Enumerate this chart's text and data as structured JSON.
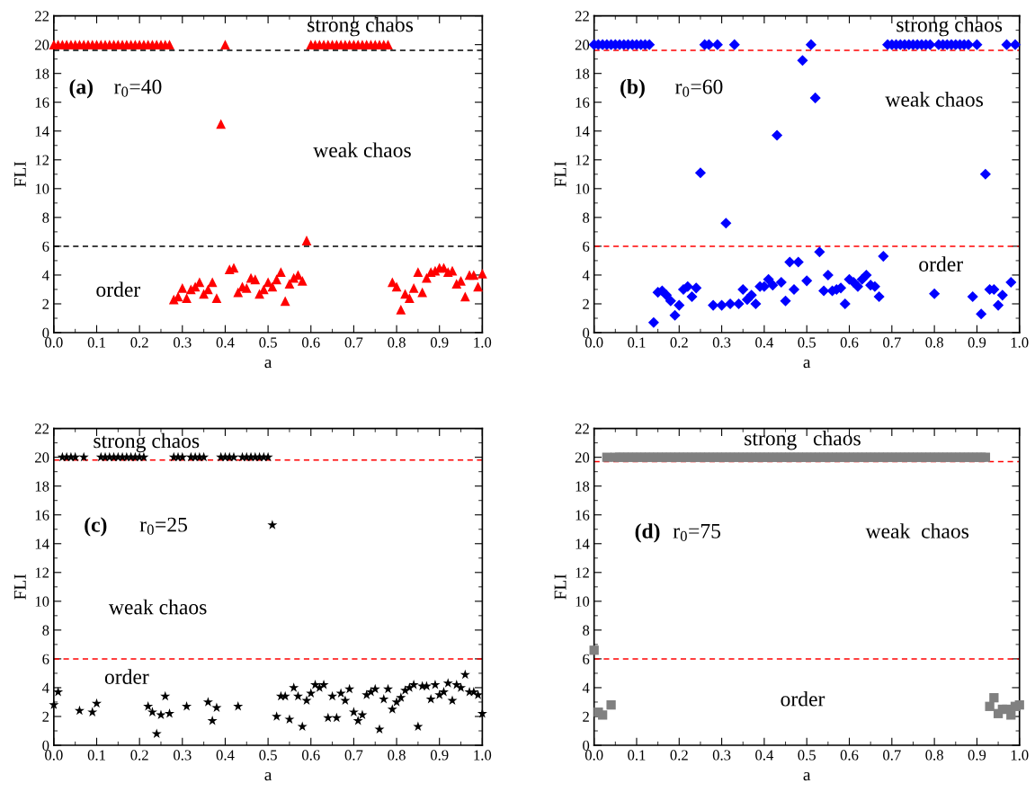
{
  "chart_data": [
    {
      "type": "scatter",
      "xlabel": "a",
      "ylabel": "FLI",
      "marker": "triangle",
      "xlim": [
        0,
        1
      ],
      "ylim": [
        0,
        22
      ],
      "xticks": [
        {
          "value": 0,
          "label": "0.0"
        },
        {
          "value": 0.1,
          "label": "0.1"
        },
        {
          "value": 0.2,
          "label": "0.2"
        },
        {
          "value": 0.3,
          "label": "0.3"
        },
        {
          "value": 0.4,
          "label": "0.4"
        },
        {
          "value": 0.5,
          "label": "0.5"
        },
        {
          "value": 0.6,
          "label": "0.6"
        },
        {
          "value": 0.7,
          "label": "0.7"
        },
        {
          "value": 0.8,
          "label": "0.8"
        },
        {
          "value": 0.9,
          "label": "0.9"
        },
        {
          "value": 1,
          "label": "1.0"
        }
      ],
      "yticks": [
        0,
        2,
        4,
        6,
        8,
        10,
        12,
        14,
        16,
        18,
        20,
        22
      ],
      "ref_lines": [
        {
          "axis": "y",
          "value": 19.6,
          "color": "#000000",
          "line_style": "dashed"
        },
        {
          "axis": "y",
          "value": 6,
          "color": "#000000",
          "line_style": "dashed"
        }
      ],
      "annotations": [
        "(a)",
        "r$_{0}$=40",
        "strong chaos",
        "weak chaos",
        "order"
      ],
      "x": [
        0,
        0.01,
        0.02,
        0.03,
        0.04,
        0.05,
        0.06,
        0.07,
        0.08,
        0.09,
        0.1,
        0.11,
        0.12,
        0.13,
        0.14,
        0.15,
        0.16,
        0.17,
        0.18,
        0.19,
        0.2,
        0.21,
        0.22,
        0.23,
        0.24,
        0.25,
        0.26,
        0.27,
        0.28,
        0.29,
        0.3,
        0.31,
        0.32,
        0.33,
        0.34,
        0.35,
        0.36,
        0.37,
        0.38,
        0.39,
        0.4,
        0.41,
        0.42,
        0.43,
        0.44,
        0.45,
        0.46,
        0.47,
        0.48,
        0.49,
        0.5,
        0.51,
        0.52,
        0.53,
        0.54,
        0.55,
        0.56,
        0.57,
        0.58,
        0.59,
        0.6,
        0.61,
        0.62,
        0.63,
        0.64,
        0.65,
        0.66,
        0.67,
        0.68,
        0.69,
        0.7,
        0.71,
        0.72,
        0.73,
        0.74,
        0.75,
        0.76,
        0.77,
        0.78,
        0.79,
        0.8,
        0.81,
        0.82,
        0.83,
        0.84,
        0.85,
        0.86,
        0.87,
        0.88,
        0.89,
        0.9,
        0.91,
        0.92,
        0.93,
        0.94,
        0.95,
        0.96,
        0.97,
        0.98,
        0.99,
        1
      ],
      "series": [
        {
          "color": "#ff0000",
          "values": [
            20,
            20,
            20,
            20,
            20,
            20,
            20,
            20,
            20,
            20,
            20,
            20,
            20,
            20,
            20,
            20,
            20,
            20,
            20,
            20,
            20,
            20,
            20,
            20,
            20,
            20,
            20,
            20,
            2.3,
            2.5,
            3.1,
            2.4,
            3.0,
            3.2,
            3.5,
            2.7,
            3.0,
            3.5,
            2.4,
            14.5,
            20,
            4.4,
            4.5,
            2.8,
            3.2,
            3.1,
            3.8,
            3.7,
            2.7,
            3.0,
            3.5,
            3.2,
            3.7,
            4.2,
            2.2,
            3.4,
            3.8,
            4.0,
            3.6,
            6.4,
            20,
            20,
            20,
            20,
            20,
            20,
            20,
            20,
            20,
            20,
            20,
            20,
            20,
            20,
            20,
            20,
            20,
            20,
            20,
            3.5,
            3.2,
            1.6,
            2.7,
            2.4,
            3.1,
            4.2,
            2.8,
            3.8,
            4.2,
            4.3,
            4.5,
            4.5,
            4.2,
            4.3,
            3.4,
            3.6,
            2.5,
            4.0,
            4.0,
            3.2,
            4.1
          ]
        }
      ]
    },
    {
      "type": "scatter",
      "xlabel": "a",
      "ylabel": "FLI",
      "marker": "diamond",
      "xlim": [
        0,
        1
      ],
      "ylim": [
        0,
        22
      ],
      "xticks": [
        {
          "value": 0,
          "label": "0.0"
        },
        {
          "value": 0.1,
          "label": "0.1"
        },
        {
          "value": 0.2,
          "label": "0.2"
        },
        {
          "value": 0.3,
          "label": "0.3"
        },
        {
          "value": 0.4,
          "label": "0.4"
        },
        {
          "value": 0.5,
          "label": "0.5"
        },
        {
          "value": 0.6,
          "label": "0.6"
        },
        {
          "value": 0.7,
          "label": "0.7"
        },
        {
          "value": 0.8,
          "label": "0.8"
        },
        {
          "value": 0.9,
          "label": "0.9"
        },
        {
          "value": 1,
          "label": "1.0"
        }
      ],
      "yticks": [
        0,
        2,
        4,
        6,
        8,
        10,
        12,
        14,
        16,
        18,
        20,
        22
      ],
      "ref_lines": [
        {
          "axis": "y",
          "value": 19.6,
          "color": "#ff0000",
          "line_style": "dashed"
        },
        {
          "axis": "y",
          "value": 6,
          "color": "#ff0000",
          "line_style": "dashed"
        }
      ],
      "annotations": [
        "(b)",
        "r$_{0}$=60",
        "strong chaos",
        "weak chaos",
        "order"
      ],
      "x": [
        0,
        0.01,
        0.02,
        0.03,
        0.04,
        0.05,
        0.06,
        0.07,
        0.08,
        0.09,
        0.1,
        0.11,
        0.12,
        0.13,
        0.14,
        0.15,
        0.16,
        0.17,
        0.18,
        0.19,
        0.2,
        0.21,
        0.22,
        0.23,
        0.24,
        0.25,
        0.26,
        0.27,
        0.28,
        0.29,
        0.3,
        0.31,
        0.32,
        0.33,
        0.34,
        0.35,
        0.36,
        0.37,
        0.38,
        0.39,
        0.4,
        0.41,
        0.42,
        0.43,
        0.44,
        0.45,
        0.46,
        0.47,
        0.48,
        0.49,
        0.5,
        0.51,
        0.52,
        0.53,
        0.54,
        0.55,
        0.56,
        0.57,
        0.58,
        0.59,
        0.6,
        0.61,
        0.62,
        0.63,
        0.64,
        0.65,
        0.66,
        0.67,
        0.68,
        0.69,
        0.7,
        0.71,
        0.72,
        0.73,
        0.74,
        0.75,
        0.76,
        0.77,
        0.78,
        0.79,
        0.8,
        0.81,
        0.82,
        0.83,
        0.84,
        0.85,
        0.86,
        0.87,
        0.88,
        0.89,
        0.9,
        0.91,
        0.92,
        0.93,
        0.94,
        0.95,
        0.96,
        0.97,
        0.98,
        0.99
      ],
      "series": [
        {
          "color": "#0000ff",
          "values": [
            20,
            20,
            20,
            20,
            20,
            20,
            20,
            20,
            20,
            20,
            20,
            20,
            20,
            20,
            0.7,
            2.8,
            2.9,
            2.6,
            2.2,
            1.2,
            1.9,
            3.0,
            3.2,
            2.5,
            3.1,
            11.1,
            20,
            20,
            1.9,
            20,
            1.9,
            7.6,
            2.0,
            20,
            2.0,
            3.0,
            2.3,
            2.6,
            2.0,
            3.2,
            3.2,
            3.7,
            3.3,
            13.7,
            3.5,
            2.2,
            4.9,
            3.0,
            4.9,
            18.9,
            3.6,
            20,
            16.3,
            5.6,
            2.9,
            4.0,
            2.9,
            3.0,
            3.1,
            2.0,
            3.7,
            3.5,
            3.2,
            3.7,
            4.0,
            3.3,
            3.2,
            2.5,
            5.3,
            20,
            20,
            20,
            20,
            20,
            20,
            20,
            20,
            20,
            20,
            20,
            2.7,
            20,
            20,
            20,
            20,
            20,
            20,
            20,
            20,
            2.5,
            20,
            1.3,
            11.0,
            3.0,
            3.0,
            1.9,
            2.6,
            20,
            3.5,
            20
          ]
        }
      ]
    },
    {
      "type": "scatter",
      "xlabel": "a",
      "ylabel": "FLI",
      "marker": "star",
      "xlim": [
        0,
        1
      ],
      "ylim": [
        0,
        22
      ],
      "xticks": [
        {
          "value": 0,
          "label": "0.0"
        },
        {
          "value": 0.1,
          "label": "0.1"
        },
        {
          "value": 0.2,
          "label": "0.2"
        },
        {
          "value": 0.3,
          "label": "0.3"
        },
        {
          "value": 0.4,
          "label": "0.4"
        },
        {
          "value": 0.5,
          "label": "0.5"
        },
        {
          "value": 0.6,
          "label": "0.6"
        },
        {
          "value": 0.7,
          "label": "0.7"
        },
        {
          "value": 0.8,
          "label": "0.8"
        },
        {
          "value": 0.9,
          "label": "0.9"
        },
        {
          "value": 1,
          "label": "1.0"
        }
      ],
      "yticks": [
        0,
        2,
        4,
        6,
        8,
        10,
        12,
        14,
        16,
        18,
        20,
        22
      ],
      "ref_lines": [
        {
          "axis": "y",
          "value": 19.8,
          "color": "#ff0000",
          "line_style": "dashed"
        },
        {
          "axis": "y",
          "value": 6,
          "color": "#ff0000",
          "line_style": "dashed"
        }
      ],
      "annotations": [
        "(c)",
        "r$_{0}$=25",
        "strong chaos",
        "weak chaos",
        "order"
      ],
      "x": [
        0,
        0.01,
        0.02,
        0.03,
        0.04,
        0.05,
        0.06,
        0.07,
        0.08,
        0.09,
        0.1,
        0.11,
        0.12,
        0.13,
        0.14,
        0.15,
        0.16,
        0.17,
        0.18,
        0.19,
        0.2,
        0.21,
        0.22,
        0.23,
        0.24,
        0.25,
        0.26,
        0.27,
        0.28,
        0.29,
        0.3,
        0.31,
        0.32,
        0.33,
        0.34,
        0.35,
        0.36,
        0.37,
        0.38,
        0.39,
        0.4,
        0.41,
        0.42,
        0.43,
        0.44,
        0.45,
        0.46,
        0.47,
        0.48,
        0.49,
        0.5,
        0.51,
        0.52,
        0.53,
        0.54,
        0.55,
        0.56,
        0.57,
        0.58,
        0.59,
        0.6,
        0.61,
        0.62,
        0.63,
        0.64,
        0.65,
        0.66,
        0.67,
        0.68,
        0.69,
        0.7,
        0.71,
        0.72,
        0.73,
        0.74,
        0.75,
        0.76,
        0.77,
        0.78,
        0.79,
        0.8,
        0.81,
        0.82,
        0.83,
        0.84,
        0.85,
        0.86,
        0.87,
        0.88,
        0.89,
        0.9,
        0.91,
        0.92,
        0.93,
        0.94,
        0.95,
        0.96,
        0.97,
        0.98,
        0.99,
        1
      ],
      "series": [
        {
          "color": "#000000",
          "values": [
            2.8,
            3.7,
            20,
            20,
            20,
            20,
            2.4,
            20,
            null,
            2.3,
            2.9,
            20,
            20,
            20,
            20,
            20,
            20,
            20,
            20,
            20,
            20,
            20,
            2.7,
            2.3,
            0.8,
            2.1,
            3.4,
            2.2,
            20,
            20,
            20,
            2.7,
            20,
            20,
            20,
            20,
            3.0,
            1.7,
            2.6,
            20,
            20,
            20,
            20,
            2.7,
            20,
            20,
            20,
            20,
            20,
            20,
            20,
            15.3,
            2.0,
            3.4,
            3.4,
            1.8,
            4.0,
            3.4,
            1.3,
            3.1,
            3.6,
            4.2,
            4.0,
            4.2,
            1.9,
            3.4,
            1.9,
            3.6,
            3.1,
            3.9,
            2.3,
            1.7,
            2.1,
            3.5,
            3.7,
            3.9,
            1.1,
            3.2,
            3.9,
            2.5,
            3.0,
            3.3,
            3.8,
            4.0,
            4.2,
            1.3,
            4.1,
            4.1,
            3.2,
            4.2,
            3.5,
            3.7,
            4.3,
            3.1,
            4.2,
            4.0,
            4.9,
            3.7,
            3.7,
            3.5,
            2.2
          ]
        }
      ]
    },
    {
      "type": "scatter",
      "xlabel": "a",
      "ylabel": "FLI",
      "marker": "square",
      "xlim": [
        0,
        1
      ],
      "ylim": [
        0,
        22
      ],
      "xticks": [
        {
          "value": 0,
          "label": "0.0"
        },
        {
          "value": 0.1,
          "label": "0.1"
        },
        {
          "value": 0.2,
          "label": "0.2"
        },
        {
          "value": 0.3,
          "label": "0.3"
        },
        {
          "value": 0.4,
          "label": "0.4"
        },
        {
          "value": 0.5,
          "label": "0.5"
        },
        {
          "value": 0.6,
          "label": "0.6"
        },
        {
          "value": 0.7,
          "label": "0.7"
        },
        {
          "value": 0.8,
          "label": "0.8"
        },
        {
          "value": 0.9,
          "label": "0.9"
        },
        {
          "value": 1,
          "label": "1.0"
        }
      ],
      "yticks": [
        0,
        2,
        4,
        6,
        8,
        10,
        12,
        14,
        16,
        18,
        20,
        22
      ],
      "ref_lines": [
        {
          "axis": "y",
          "value": 19.7,
          "color": "#ff0000",
          "line_style": "dashed"
        },
        {
          "axis": "y",
          "value": 6,
          "color": "#ff0000",
          "line_style": "dashed"
        }
      ],
      "annotations": [
        "(d)",
        "r$_{0}$=75",
        "strong   chaos",
        "weak  chaos",
        "order"
      ],
      "x": [
        0,
        0.01,
        0.02,
        0.03,
        0.04,
        0.05,
        0.06,
        0.07,
        0.08,
        0.09,
        0.1,
        0.11,
        0.12,
        0.13,
        0.14,
        0.15,
        0.16,
        0.17,
        0.18,
        0.19,
        0.2,
        0.21,
        0.22,
        0.23,
        0.24,
        0.25,
        0.26,
        0.27,
        0.28,
        0.29,
        0.3,
        0.31,
        0.32,
        0.33,
        0.34,
        0.35,
        0.36,
        0.37,
        0.38,
        0.39,
        0.4,
        0.41,
        0.42,
        0.43,
        0.44,
        0.45,
        0.46,
        0.47,
        0.48,
        0.49,
        0.5,
        0.51,
        0.52,
        0.53,
        0.54,
        0.55,
        0.56,
        0.57,
        0.58,
        0.59,
        0.6,
        0.61,
        0.62,
        0.63,
        0.64,
        0.65,
        0.66,
        0.67,
        0.68,
        0.69,
        0.7,
        0.71,
        0.72,
        0.73,
        0.74,
        0.75,
        0.76,
        0.77,
        0.78,
        0.79,
        0.8,
        0.81,
        0.82,
        0.83,
        0.84,
        0.85,
        0.86,
        0.87,
        0.88,
        0.89,
        0.9,
        0.91,
        0.92,
        0.93,
        0.94,
        0.95,
        0.96,
        0.97,
        0.98,
        0.99,
        1
      ],
      "series": [
        {
          "color": "#808080",
          "values": [
            6.6,
            2.3,
            2.1,
            20,
            2.8,
            20,
            20,
            20,
            20,
            20,
            20,
            20,
            20,
            20,
            20,
            20,
            20,
            20,
            20,
            20,
            20,
            20,
            20,
            20,
            20,
            20,
            20,
            20,
            20,
            20,
            20,
            20,
            20,
            20,
            20,
            20,
            20,
            20,
            20,
            20,
            20,
            20,
            20,
            20,
            20,
            20,
            20,
            20,
            20,
            20,
            20,
            20,
            20,
            20,
            20,
            20,
            20,
            20,
            20,
            20,
            20,
            20,
            20,
            20,
            20,
            20,
            20,
            20,
            20,
            20,
            20,
            20,
            20,
            20,
            20,
            20,
            20,
            20,
            20,
            20,
            20,
            20,
            20,
            20,
            20,
            20,
            20,
            20,
            20,
            20,
            20,
            20,
            20,
            2.7,
            3.3,
            2.2,
            2.5,
            2.5,
            2.1,
            2.7,
            2.8
          ]
        }
      ]
    }
  ]
}
